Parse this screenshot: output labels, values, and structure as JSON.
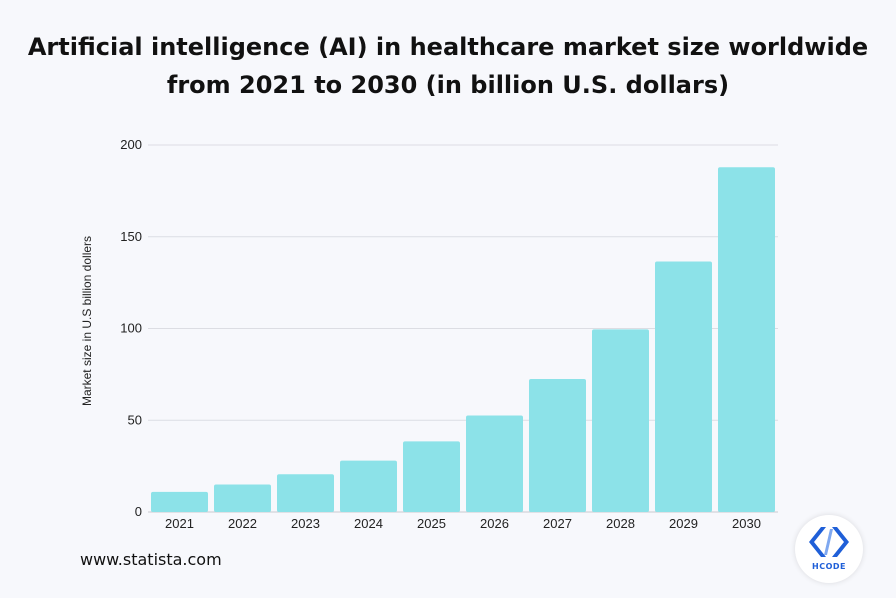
{
  "chart_data": {
    "type": "bar",
    "title_lines": [
      "Artificial intelligence (AI) in healthcare market size worldwide",
      "from 2021 to 2030 (in billion U.S. dollars)"
    ],
    "xlabel": "",
    "ylabel": "Market size in  U.S billion dollers",
    "ylim": [
      0,
      200
    ],
    "yticks": [
      0,
      50,
      100,
      150,
      200
    ],
    "grid": true,
    "categories": [
      "2021",
      "2022",
      "2023",
      "2024",
      "2025",
      "2026",
      "2027",
      "2028",
      "2029",
      "2030"
    ],
    "values": [
      11,
      15,
      20.6,
      28,
      38.5,
      52.6,
      72.5,
      99.5,
      136.5,
      187.9
    ],
    "bar_color": "#8ce2e8"
  },
  "footer": {
    "source": "www.statista.com"
  },
  "logo": {
    "icon": "code-brackets-icon",
    "text": "HCODE",
    "color": "#1f5fd8"
  }
}
